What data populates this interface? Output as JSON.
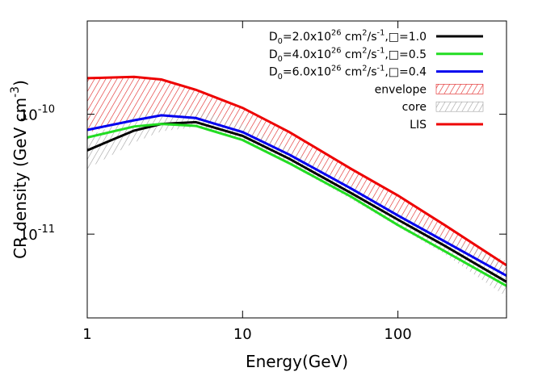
{
  "chart_data": {
    "type": "line",
    "x_label": "Energy(GeV)",
    "y_label": [
      {
        "text": "CR density (GeV cm"
      },
      {
        "text": "-3",
        "sup": true
      },
      {
        "text": ")"
      }
    ],
    "log_x": true,
    "log_y": true,
    "xlim": [
      1,
      500
    ],
    "ylim": [
      2e-12,
      6e-10
    ],
    "xticks": [
      1,
      10,
      100
    ],
    "yticks": [
      {
        "value": 1e-10,
        "label": "10",
        "exponent": "-10"
      },
      {
        "value": 1e-11,
        "label": "10",
        "exponent": "-11"
      }
    ],
    "x": [
      1,
      2,
      3,
      5,
      10,
      20,
      50,
      100,
      200,
      500
    ],
    "series": [
      {
        "name": [
          {
            "text": "D"
          },
          {
            "text": "0",
            "sub": true
          },
          {
            "text": "=2.0x10"
          },
          {
            "text": "26",
            "sup": true
          },
          {
            "text": " cm"
          },
          {
            "text": "2",
            "sup": true
          },
          {
            "text": "/s"
          },
          {
            "text": "-1",
            "sup": true
          },
          {
            "text": ",□=1.0"
          }
        ],
        "color": "#000000",
        "values": [
          5e-11,
          7.3e-11,
          8.3e-11,
          8.6e-11,
          6.6e-11,
          4.25e-11,
          2.2e-11,
          1.32e-11,
          8e-12,
          4e-12
        ]
      },
      {
        "name": [
          {
            "text": "D"
          },
          {
            "text": "0",
            "sub": true
          },
          {
            "text": "=4.0x10"
          },
          {
            "text": "26",
            "sup": true
          },
          {
            "text": " cm"
          },
          {
            "text": "2",
            "sup": true
          },
          {
            "text": "/s"
          },
          {
            "text": "-1",
            "sup": true
          },
          {
            "text": ",□=0.5"
          }
        ],
        "color": "#22dd22",
        "values": [
          6.4e-11,
          7.9e-11,
          8.3e-11,
          8e-11,
          6.1e-11,
          3.9e-11,
          2.05e-11,
          1.19e-11,
          7.2e-12,
          3.7e-12
        ]
      },
      {
        "name": [
          {
            "text": "D"
          },
          {
            "text": "0",
            "sub": true
          },
          {
            "text": "=6.0x10"
          },
          {
            "text": "26",
            "sup": true
          },
          {
            "text": " cm"
          },
          {
            "text": "2",
            "sup": true
          },
          {
            "text": "/s"
          },
          {
            "text": "-1",
            "sup": true
          },
          {
            "text": ",□=0.4"
          }
        ],
        "color": "#0000ee",
        "values": [
          7.4e-11,
          8.9e-11,
          9.8e-11,
          9.3e-11,
          7.1e-11,
          4.6e-11,
          2.4e-11,
          1.43e-11,
          8.7e-12,
          4.5e-12
        ]
      },
      {
        "name": [
          {
            "text": "envelope"
          }
        ],
        "color": "#e02020",
        "lower": [
          7e-11,
          9e-11,
          1e-10,
          9.5e-11,
          7.2e-11,
          4.7e-11,
          2.45e-11,
          1.45e-11,
          8.8e-12,
          4.6e-12
        ],
        "upper": [
          2e-10,
          2.05e-10,
          1.95e-10,
          1.6e-10,
          1.13e-10,
          7.1e-11,
          3.5e-11,
          2.1e-11,
          1.19e-11,
          5.5e-12
        ]
      },
      {
        "name": [
          {
            "text": "core"
          }
        ],
        "color": "#a0a0a0",
        "lower": [
          3.5e-11,
          5.8e-11,
          7.2e-11,
          7.8e-11,
          6e-11,
          3.8e-11,
          1.95e-11,
          1.15e-11,
          6.8e-12,
          3e-12
        ],
        "upper": [
          6.5e-11,
          9.5e-11,
          1.1e-10,
          1.1e-10,
          8.2e-11,
          5.2e-11,
          2.6e-11,
          1.55e-11,
          9.5e-12,
          6e-12
        ]
      },
      {
        "name": [
          {
            "text": "LIS"
          }
        ],
        "color": "#ee0000",
        "values": [
          2e-10,
          2.05e-10,
          1.95e-10,
          1.6e-10,
          1.13e-10,
          7.1e-11,
          3.5e-11,
          2.1e-11,
          1.19e-11,
          5.5e-12
        ]
      }
    ]
  }
}
